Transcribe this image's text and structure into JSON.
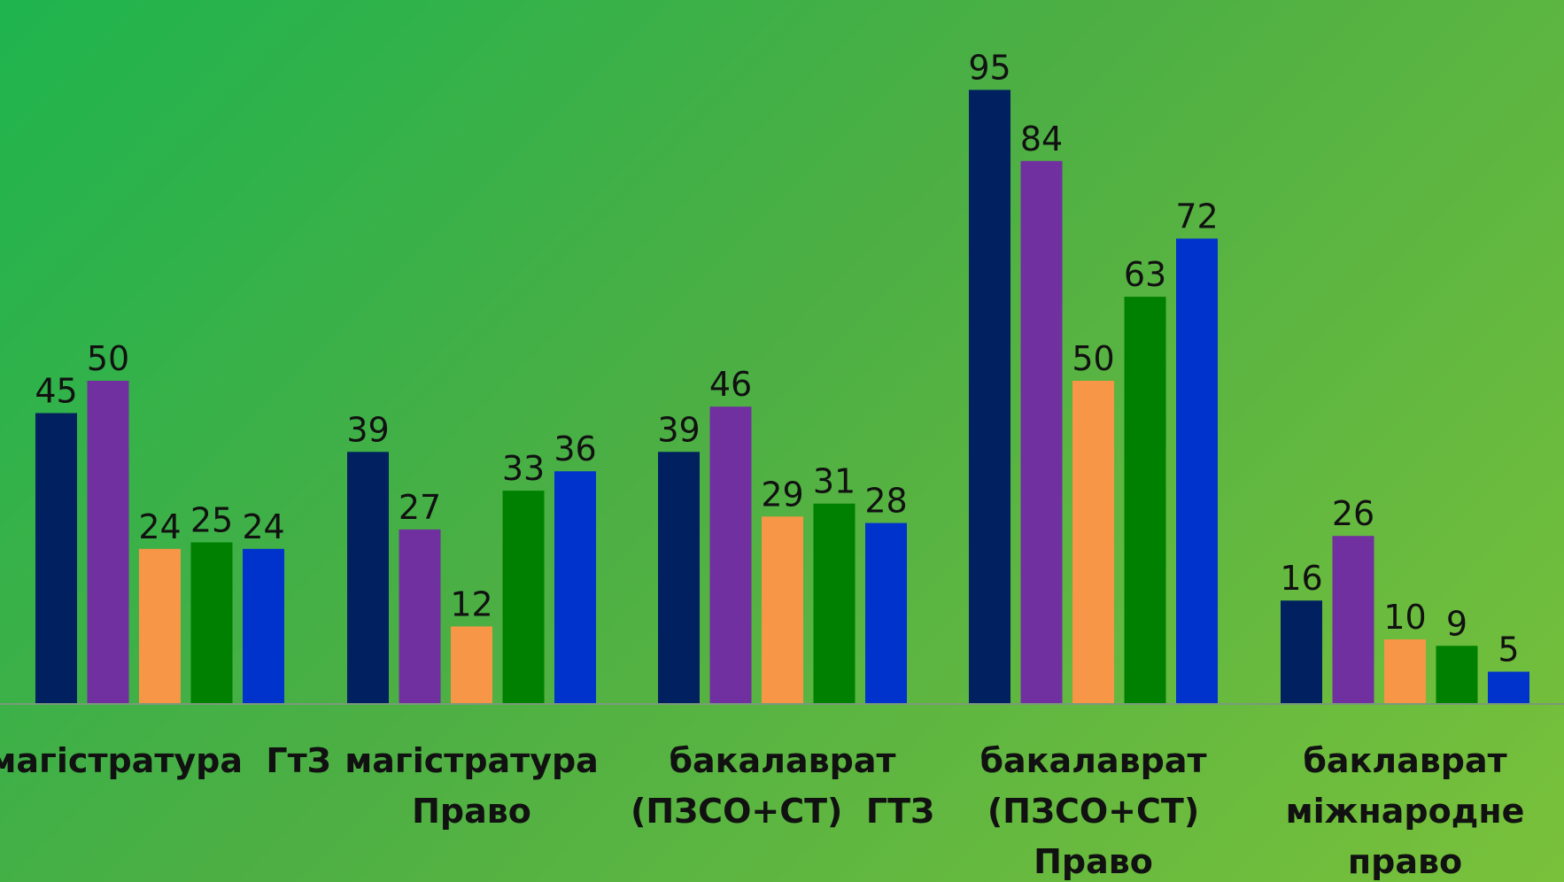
{
  "chart_data": {
    "type": "bar",
    "categories": [
      [
        "магістратура  ГтЗ"
      ],
      [
        "магістратура",
        "Право"
      ],
      [
        "бакалаврат",
        "(ПЗСО+СТ)  ГТЗ"
      ],
      [
        "бакалаврат",
        "(ПЗСО+СТ)",
        "Право"
      ],
      [
        "баклаврат",
        "міжнародне",
        "право"
      ]
    ],
    "series": [
      {
        "color": "#00205f",
        "values": [
          45,
          39,
          39,
          95,
          16
        ]
      },
      {
        "color": "#7030a0",
        "values": [
          50,
          27,
          46,
          84,
          26
        ]
      },
      {
        "color": "#f79646",
        "values": [
          24,
          12,
          29,
          50,
          10
        ]
      },
      {
        "color": "#008000",
        "values": [
          25,
          33,
          31,
          63,
          9
        ]
      },
      {
        "color": "#0033cc",
        "values": [
          24,
          36,
          28,
          72,
          5
        ]
      }
    ],
    "ylim": [
      0,
      100
    ],
    "grid": false,
    "legend": "none",
    "data_labels": true,
    "axis_color": "#7a9a7a"
  }
}
